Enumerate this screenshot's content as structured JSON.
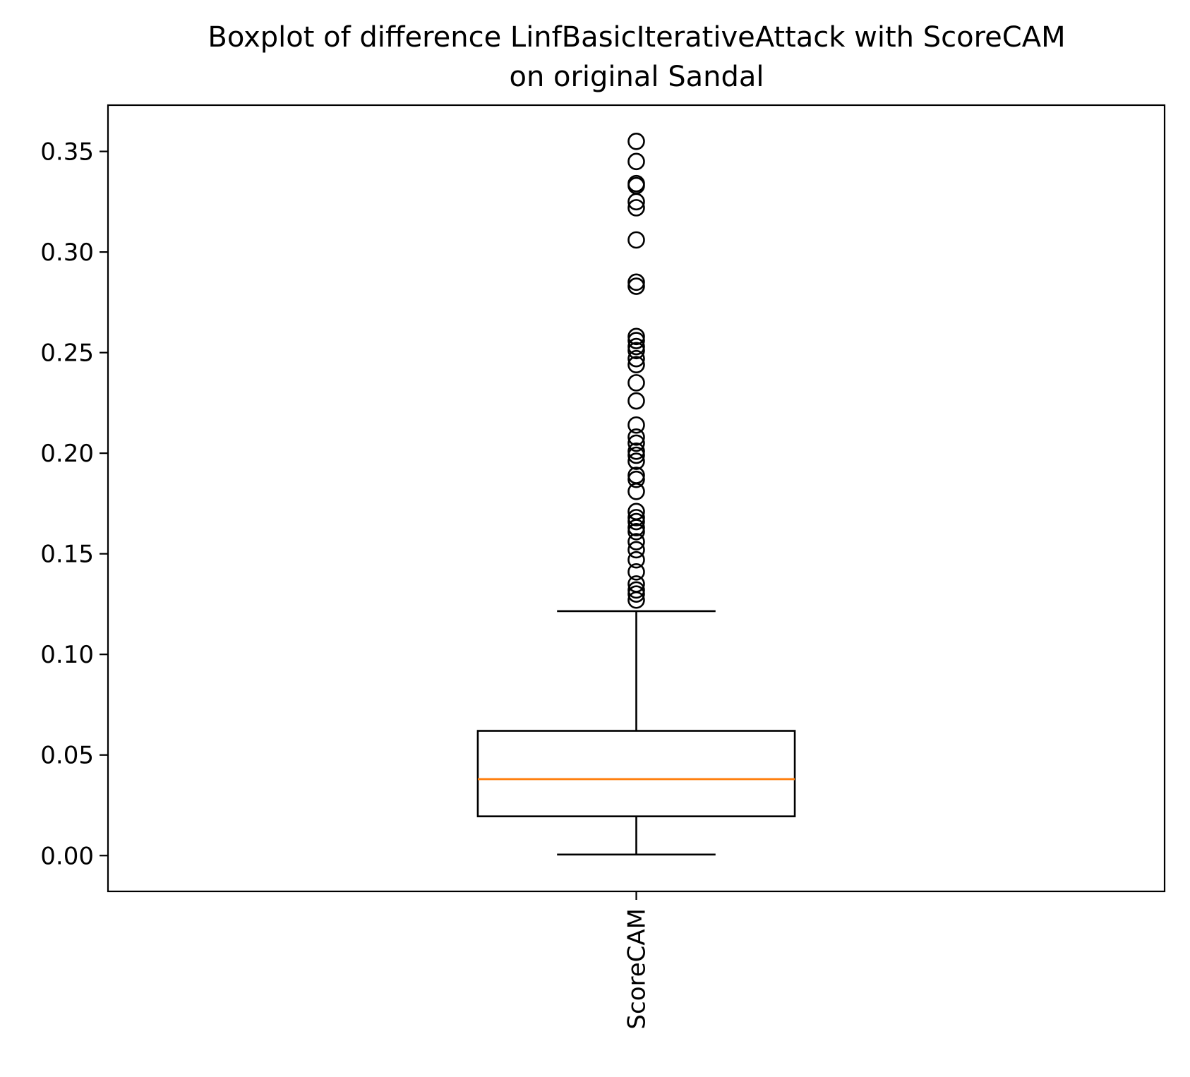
{
  "chart_data": {
    "type": "boxplot",
    "title_line1": "Boxplot of difference LinfBasicIterativeAttack with ScoreCAM",
    "title_line2": "on original Sandal",
    "categories": [
      "ScoreCAM"
    ],
    "ylim": [
      -0.0178,
      0.373
    ],
    "yticks": [
      "0.00",
      "0.05",
      "0.10",
      "0.15",
      "0.20",
      "0.25",
      "0.30",
      "0.35"
    ],
    "ytick_values": [
      0.0,
      0.05,
      0.1,
      0.15,
      0.2,
      0.25,
      0.3,
      0.35
    ],
    "boxes": [
      {
        "label": "ScoreCAM",
        "whisker_low": 0.0005,
        "q1": 0.0195,
        "median": 0.038,
        "q3": 0.062,
        "whisker_high": 0.1215,
        "outliers": [
          0.355,
          0.345,
          0.334,
          0.333,
          0.325,
          0.322,
          0.306,
          0.285,
          0.283,
          0.258,
          0.256,
          0.253,
          0.251,
          0.247,
          0.244,
          0.235,
          0.226,
          0.214,
          0.208,
          0.205,
          0.201,
          0.199,
          0.196,
          0.189,
          0.187,
          0.181,
          0.171,
          0.168,
          0.166,
          0.163,
          0.161,
          0.156,
          0.152,
          0.147,
          0.141,
          0.135,
          0.132,
          0.13,
          0.127
        ]
      }
    ],
    "grid": false,
    "median_color": "#ff7f0e",
    "box_color": "#000000"
  }
}
